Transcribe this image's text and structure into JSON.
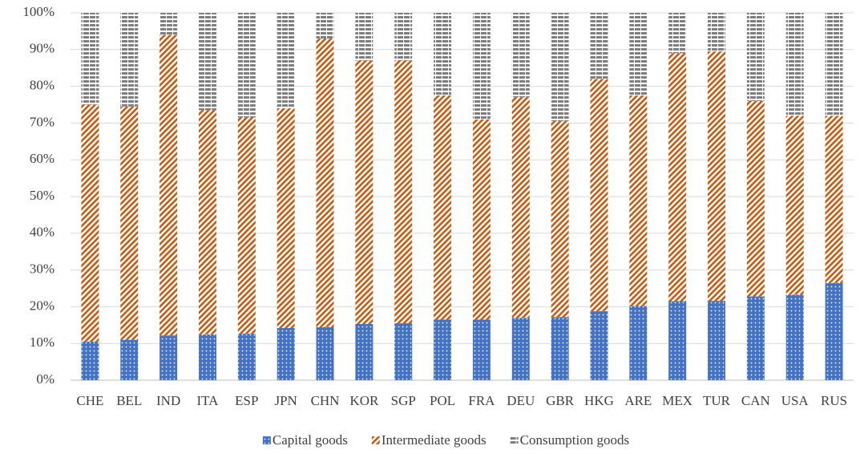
{
  "chart_data": {
    "type": "stacked_bar",
    "categories": [
      "CHE",
      "BEL",
      "IND",
      "ITA",
      "ESP",
      "JPN",
      "CHN",
      "KOR",
      "SGP",
      "POL",
      "FRA",
      "DEU",
      "GBR",
      "HKG",
      "ARE",
      "MEX",
      "TUR",
      "CAN",
      "USA",
      "RUS"
    ],
    "series": [
      {
        "name": "Capital goods",
        "color": "#4472c4",
        "values": [
          10.5,
          11,
          12.2,
          12.5,
          12.7,
          14.2,
          14.5,
          15.3,
          15.5,
          16.5,
          16.5,
          17,
          17.2,
          18.8,
          20.2,
          21.5,
          21.6,
          22.8,
          23.3,
          26.5
        ]
      },
      {
        "name": "Intermediate goods",
        "color": "#c55a11",
        "values": [
          64.5,
          63.5,
          81.8,
          61,
          58.8,
          59.8,
          78.5,
          71.7,
          71.5,
          61,
          54.5,
          60,
          53.3,
          63.2,
          57.3,
          67.5,
          67.9,
          53.2,
          48.7,
          45.5
        ]
      },
      {
        "name": "Consumption goods",
        "color": "#7f7f7f",
        "values": [
          25,
          25.5,
          6,
          26.5,
          28.5,
          26,
          7,
          13,
          13,
          22.5,
          29,
          23,
          29.5,
          18,
          22.5,
          11,
          10.5,
          24,
          28,
          28
        ]
      }
    ],
    "ylim": [
      0,
      100
    ],
    "yticks": [
      {
        "value": 0,
        "label": "0%"
      },
      {
        "value": 10,
        "label": "10%"
      },
      {
        "value": 20,
        "label": "20%"
      },
      {
        "value": 30,
        "label": "30%"
      },
      {
        "value": 40,
        "label": "40%"
      },
      {
        "value": 50,
        "label": "50%"
      },
      {
        "value": 60,
        "label": "60%"
      },
      {
        "value": 70,
        "label": "70%"
      },
      {
        "value": 80,
        "label": "80%"
      },
      {
        "value": 90,
        "label": "90%"
      },
      {
        "value": 100,
        "label": "100%"
      }
    ],
    "grid": true,
    "legend": "bottom"
  }
}
